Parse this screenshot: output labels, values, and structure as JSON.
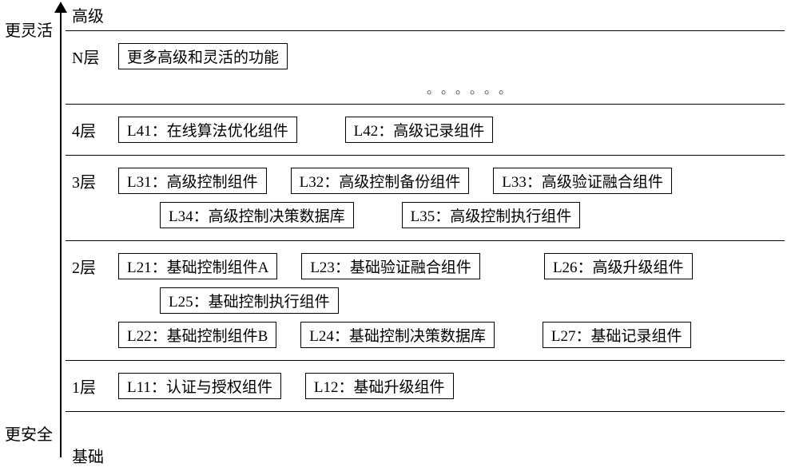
{
  "colors": {
    "background": "#ffffff",
    "line": "#000000",
    "text": "#000000",
    "box_border": "#000000",
    "box_fill": "#ffffff"
  },
  "typography": {
    "font_family": "SimSun",
    "label_fontsize_pt": 14,
    "box_fontsize_pt": 13
  },
  "axis": {
    "top_label": "高级",
    "bottom_label": "基础",
    "side_top_label": "更灵活",
    "side_bottom_label": "更安全"
  },
  "layers": [
    {
      "name": "N层",
      "rows": [
        {
          "boxes": [
            {
              "text": "更多高级和灵活的功能"
            }
          ]
        }
      ],
      "ellipsis_after": "。。。。。。"
    },
    {
      "name": "4层",
      "rows": [
        {
          "boxes": [
            {
              "text": "L41：在线算法优化组件",
              "gap": "md"
            },
            {
              "text": "L42：高级记录组件"
            }
          ]
        }
      ]
    },
    {
      "name": "3层",
      "rows": [
        {
          "boxes": [
            {
              "text": "L31：高级控制组件",
              "gap": "sm"
            },
            {
              "text": "L32：高级控制备份组件",
              "gap": "sm"
            },
            {
              "text": "L33：高级验证融合组件"
            }
          ]
        },
        {
          "indent": true,
          "boxes": [
            {
              "text": "L34：高级控制决策数据库",
              "gap": "md"
            },
            {
              "text": "L35：高级控制执行组件"
            }
          ]
        }
      ]
    },
    {
      "name": "2层",
      "rows": [
        {
          "boxes": [
            {
              "text": "L21：基础控制组件A",
              "gap": "sm"
            },
            {
              "text": "L23：基础验证融合组件",
              "gap": "lg"
            },
            {
              "text": "L26：高级升级组件"
            }
          ]
        },
        {
          "indent": true,
          "boxes": [
            {
              "text": "L25：基础控制执行组件"
            }
          ]
        },
        {
          "boxes": [
            {
              "text": "L22：基础控制组件B",
              "gap": "sm"
            },
            {
              "text": "L24：基础控制决策数据库",
              "gap": "md"
            },
            {
              "text": "L27：基础记录组件"
            }
          ]
        }
      ]
    },
    {
      "name": "1层",
      "rows": [
        {
          "boxes": [
            {
              "text": "L11：认证与授权组件",
              "gap": "sm"
            },
            {
              "text": "L12：基础升级组件"
            }
          ]
        }
      ]
    }
  ]
}
